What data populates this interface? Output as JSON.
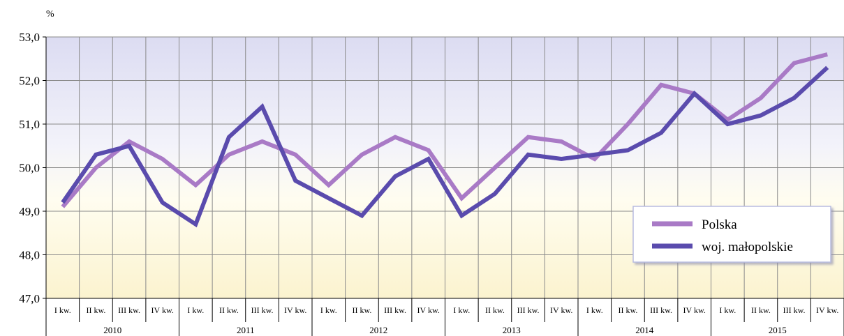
{
  "chart_data": {
    "type": "line",
    "ylabel": "%",
    "ylim": [
      47.0,
      53.0
    ],
    "yticks": [
      "47,0",
      "48,0",
      "49,0",
      "50,0",
      "51,0",
      "52,0",
      "53,0"
    ],
    "quarters": [
      "I kw.",
      "II kw.",
      "III kw.",
      "IV kw."
    ],
    "years": [
      "2010",
      "2011",
      "2012",
      "2013",
      "2014",
      "2015"
    ],
    "series": [
      {
        "name": "Polska",
        "color": "#a97ac6",
        "values": [
          49.1,
          50.0,
          50.6,
          50.2,
          49.6,
          50.3,
          50.6,
          50.3,
          49.6,
          50.3,
          50.7,
          50.4,
          49.3,
          50.0,
          50.7,
          50.6,
          50.2,
          51.0,
          51.9,
          51.7,
          51.1,
          51.6,
          52.4,
          52.6
        ]
      },
      {
        "name": "woj. małopolskie",
        "color": "#5a4bad",
        "values": [
          49.2,
          50.3,
          50.5,
          49.2,
          48.7,
          50.7,
          51.4,
          49.7,
          49.3,
          48.9,
          49.8,
          50.2,
          48.9,
          49.4,
          50.3,
          50.2,
          50.3,
          50.4,
          50.8,
          51.7,
          51.0,
          51.2,
          51.6,
          52.3
        ]
      }
    ],
    "grid": true,
    "legend_position": "bottom-right"
  }
}
